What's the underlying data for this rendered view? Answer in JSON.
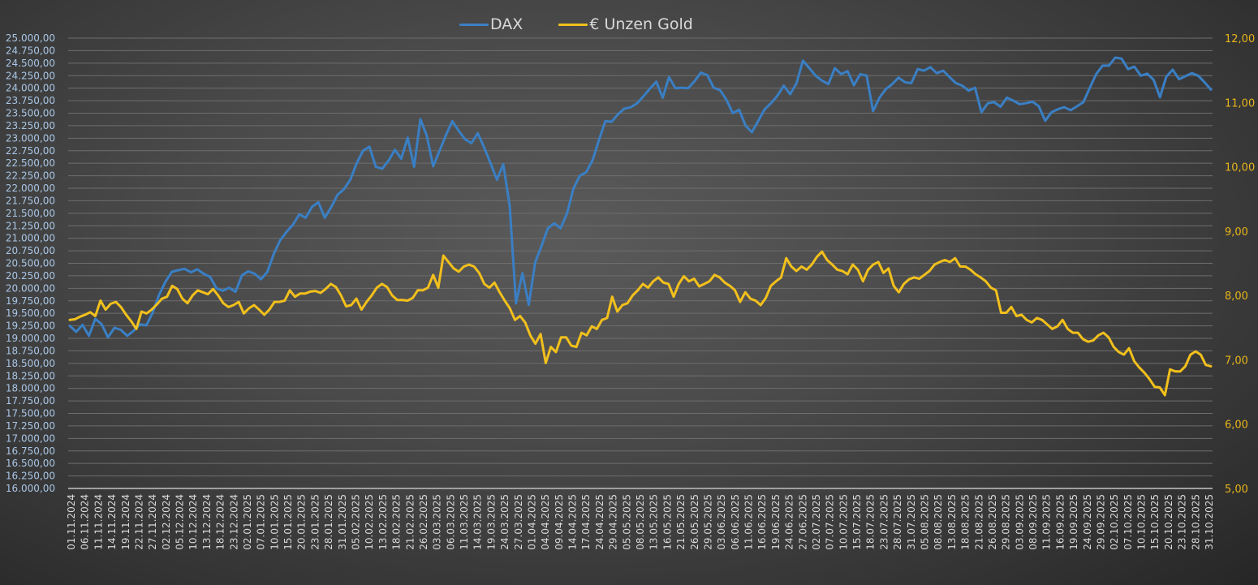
{
  "legend": {
    "items": [
      {
        "label": "DAX",
        "color": "#3a7fc4"
      },
      {
        "label": "€ Unzen Gold",
        "color": "#f2c01c"
      }
    ]
  },
  "colors": {
    "dax_line": "#3a7fc4",
    "gold_line": "#f2c01c",
    "left_axis_text": "#a9c6e6",
    "right_axis_text": "#e7b51a",
    "x_axis_text": "#d9d9d9",
    "grid": "#6e6e6e",
    "axis_line": "#a0a0a0"
  },
  "chart_data": {
    "type": "line",
    "title": "",
    "xlabel": "",
    "ylabel": "",
    "grid": true,
    "legend_position": "top",
    "categories": [
      "01.11.2024",
      "06.11.2024",
      "11.11.2024",
      "14.11.2024",
      "19.11.2024",
      "22.11.2024",
      "27.11.2024",
      "02.12.2024",
      "05.12.2024",
      "10.12.2024",
      "13.12.2024",
      "18.12.2024",
      "23.12.2024",
      "02.01.2025",
      "07.01.2025",
      "10.01.2025",
      "15.01.2025",
      "20.01.2025",
      "23.01.2025",
      "28.01.2025",
      "31.01.2025",
      "05.02.2025",
      "10.02.2025",
      "13.02.2025",
      "18.02.2025",
      "21.02.2025",
      "26.02.2025",
      "03.03.2025",
      "06.03.2025",
      "11.03.2025",
      "14.03.2025",
      "19.03.2025",
      "24.03.2025",
      "27.03.2025",
      "01.04.2025",
      "04.04.2025",
      "09.04.2025",
      "14.04.2025",
      "17.04.2025",
      "24.04.2025",
      "29.04.2025",
      "05.05.2025",
      "08.05.2025",
      "13.05.2025",
      "16.05.2025",
      "21.05.2025",
      "26.05.2025",
      "29.05.2025",
      "03.06.2025",
      "06.06.2025",
      "11.06.2025",
      "16.06.2025",
      "19.06.2025",
      "24.06.2025",
      "27.06.2025",
      "02.07.2025",
      "07.07.2025",
      "10.07.2025",
      "15.07.2025",
      "18.07.2025",
      "23.07.2025",
      "28.07.2025",
      "31.07.2025",
      "05.08.2025",
      "08.08.2025",
      "13.08.2025",
      "18.08.2025",
      "21.08.2025",
      "26.08.2025",
      "29.08.2025",
      "03.09.2025",
      "08.09.2025",
      "11.09.2025",
      "16.09.2025",
      "19.09.2025",
      "24.09.2025",
      "29.09.2025",
      "02.10.2025",
      "07.10.2025",
      "10.10.2025",
      "15.10.2025",
      "20.10.2025",
      "23.10.2025",
      "28.10.2025",
      "31.10.2025"
    ],
    "left_axis": {
      "series": "DAX",
      "min": 16000,
      "max": 25000,
      "step": 250,
      "tick_labels": [
        "25.000,00",
        "24.750,00",
        "24.500,00",
        "24.250,00",
        "24.000,00",
        "23.750,00",
        "23.500,00",
        "23.250,00",
        "23.000,00",
        "22.750,00",
        "22.500,00",
        "22.250,00",
        "22.000,00",
        "21.750,00",
        "21.500,00",
        "21.250,00",
        "21.000,00",
        "20.750,00",
        "20.500,00",
        "20.250,00",
        "20.000,00",
        "19.750,00",
        "19.500,00",
        "19.250,00",
        "19.000,00",
        "18.750,00",
        "18.500,00",
        "18.250,00",
        "18.000,00",
        "17.750,00",
        "17.500,00",
        "17.250,00",
        "17.000,00",
        "16.750,00",
        "16.500,00",
        "16.250,00",
        "16.000,00"
      ]
    },
    "right_axis": {
      "series": "€ Unzen Gold",
      "min": 5,
      "max": 12,
      "step": 1,
      "tick_labels": [
        "12,00",
        "11,00",
        "10,00",
        "9,00",
        "8,00",
        "7,00",
        "6,00",
        "5,00"
      ]
    },
    "series": [
      {
        "name": "DAX",
        "axis": "left",
        "values": [
          19250,
          19130,
          19270,
          19050,
          19390,
          19280,
          19020,
          19210,
          19170,
          19050,
          19150,
          19280,
          19260,
          19510,
          19870,
          20130,
          20330,
          20360,
          20390,
          20320,
          20380,
          20290,
          20230,
          20000,
          19950,
          20010,
          19930,
          20260,
          20340,
          20290,
          20180,
          20330,
          20690,
          20960,
          21130,
          21270,
          21480,
          21410,
          21630,
          21720,
          21410,
          21620,
          21870,
          21980,
          22170,
          22500,
          22750,
          22830,
          22430,
          22390,
          22550,
          22770,
          22590,
          23010,
          22430,
          23380,
          23050,
          22440,
          22750,
          23060,
          23340,
          23150,
          22980,
          22900,
          23100,
          22810,
          22500,
          22170,
          22480,
          21650,
          19700,
          20300,
          19670,
          20520,
          20850,
          21200,
          21300,
          21200,
          21500,
          21990,
          22250,
          22320,
          22560,
          22960,
          23340,
          23330,
          23480,
          23590,
          23620,
          23700,
          23840,
          23990,
          24130,
          23810,
          24220,
          24000,
          24010,
          24000,
          24140,
          24310,
          24260,
          24010,
          23960,
          23770,
          23500,
          23570,
          23250,
          23120,
          23350,
          23580,
          23700,
          23850,
          24050,
          23880,
          24100,
          24550,
          24400,
          24250,
          24150,
          24080,
          24400,
          24280,
          24340,
          24060,
          24280,
          24250,
          23540,
          23810,
          23980,
          24080,
          24210,
          24120,
          24100,
          24380,
          24350,
          24420,
          24300,
          24350,
          24220,
          24100,
          24050,
          23950,
          24010,
          23520,
          23700,
          23720,
          23630,
          23810,
          23750,
          23680,
          23700,
          23730,
          23640,
          23350,
          23520,
          23580,
          23620,
          23560,
          23640,
          23720,
          24010,
          24280,
          24450,
          24450,
          24610,
          24590,
          24380,
          24430,
          24250,
          24290,
          24170,
          23820,
          24230,
          24370,
          24180,
          24240,
          24300,
          24250,
          24120,
          23970
        ]
      },
      {
        "name": "€ Unzen Gold",
        "axis": "right",
        "values": [
          7.62,
          7.63,
          7.67,
          7.7,
          7.74,
          7.68,
          7.92,
          7.78,
          7.87,
          7.9,
          7.82,
          7.7,
          7.6,
          7.48,
          7.75,
          7.72,
          7.78,
          7.86,
          7.95,
          7.98,
          8.15,
          8.1,
          7.95,
          7.88,
          8.0,
          8.08,
          8.05,
          8.02,
          8.1,
          8.0,
          7.88,
          7.82,
          7.85,
          7.9,
          7.72,
          7.8,
          7.85,
          7.78,
          7.7,
          7.78,
          7.9,
          7.9,
          7.92,
          8.08,
          7.98,
          8.03,
          8.03,
          8.06,
          8.07,
          8.04,
          8.1,
          8.18,
          8.13,
          8.0,
          7.83,
          7.85,
          7.95,
          7.78,
          7.9,
          8.0,
          8.12,
          8.18,
          8.13,
          8.0,
          7.93,
          7.93,
          7.92,
          7.96,
          8.08,
          8.08,
          8.12,
          8.32,
          8.12,
          8.62,
          8.52,
          8.42,
          8.37,
          8.45,
          8.48,
          8.45,
          8.35,
          8.18,
          8.12,
          8.2,
          8.05,
          7.92,
          7.8,
          7.62,
          7.68,
          7.58,
          7.38,
          7.25,
          7.4,
          6.95,
          7.2,
          7.12,
          7.35,
          7.35,
          7.22,
          7.2,
          7.42,
          7.38,
          7.52,
          7.48,
          7.62,
          7.65,
          7.98,
          7.75,
          7.85,
          7.88,
          8.0,
          8.08,
          8.18,
          8.12,
          8.22,
          8.28,
          8.2,
          8.18,
          7.98,
          8.18,
          8.3,
          8.22,
          8.26,
          8.14,
          8.18,
          8.22,
          8.32,
          8.28,
          8.2,
          8.15,
          8.08,
          7.9,
          8.05,
          7.95,
          7.92,
          7.85,
          7.96,
          8.15,
          8.22,
          8.28,
          8.58,
          8.45,
          8.38,
          8.45,
          8.4,
          8.48,
          8.6,
          8.68,
          8.55,
          8.48,
          8.4,
          8.38,
          8.33,
          8.48,
          8.4,
          8.22,
          8.4,
          8.48,
          8.52,
          8.35,
          8.42,
          8.15,
          8.05,
          8.18,
          8.25,
          8.28,
          8.26,
          8.32,
          8.38,
          8.48,
          8.52,
          8.55,
          8.52,
          8.58,
          8.45,
          8.45,
          8.4,
          8.33,
          8.28,
          8.22,
          8.12,
          8.08,
          7.73,
          7.73,
          7.82,
          7.68,
          7.7,
          7.62,
          7.58,
          7.65,
          7.62,
          7.55,
          7.48,
          7.52,
          7.62,
          7.48,
          7.42,
          7.42,
          7.32,
          7.28,
          7.3,
          7.38,
          7.42,
          7.35,
          7.2,
          7.12,
          7.08,
          7.18,
          6.98,
          6.88,
          6.8,
          6.7,
          6.58,
          6.57,
          6.45,
          6.85,
          6.82,
          6.82,
          6.9,
          7.08,
          7.13,
          7.08,
          6.92,
          6.9
        ]
      }
    ]
  }
}
